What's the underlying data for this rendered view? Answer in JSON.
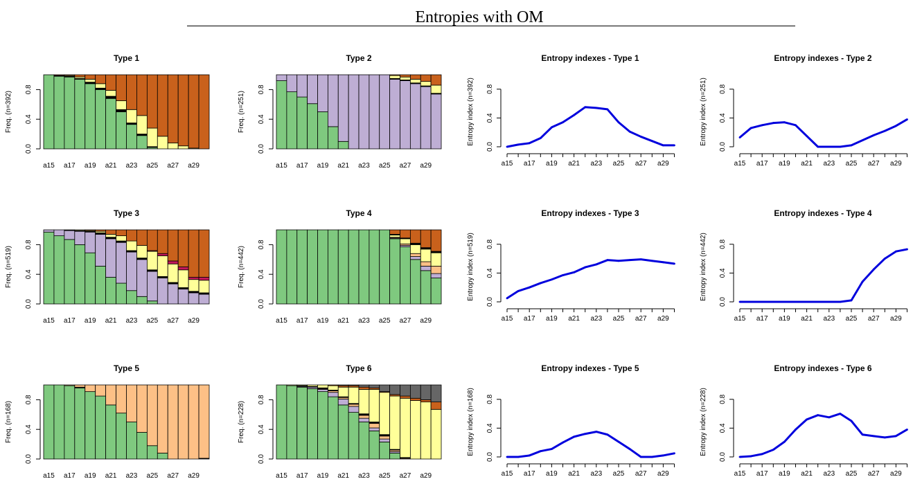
{
  "title": "Entropies with OM",
  "colors": {
    "green": "#7fc97f",
    "lavender": "#beaed4",
    "peach": "#fdc086",
    "yellow": "#ffff99",
    "orange": "#c9611c",
    "crimson": "#c2185b",
    "dark": "#666666",
    "black": "#000000",
    "line": "#0000dd"
  },
  "x_tick_labels": [
    "a15",
    "a17",
    "a19",
    "a21",
    "a23",
    "a25",
    "a27",
    "a29"
  ],
  "chart_data": [
    {
      "type": "bar",
      "title": "Type 1",
      "ylabel": "Freq. (n=392)",
      "yticks": [
        "0.0",
        "0.4",
        "0.8"
      ],
      "ylim": [
        0,
        1
      ],
      "categories": [
        "a15",
        "a16",
        "a17",
        "a18",
        "a19",
        "a20",
        "a21",
        "a22",
        "a23",
        "a24",
        "a25",
        "a26",
        "a27",
        "a28",
        "a29",
        "a30"
      ],
      "series": [
        {
          "color": "green",
          "values": [
            1.0,
            0.98,
            0.97,
            0.94,
            0.88,
            0.8,
            0.68,
            0.5,
            0.33,
            0.18,
            0.02,
            0.0,
            0.0,
            0.0,
            0.0,
            0.0
          ]
        },
        {
          "color": "black",
          "values": [
            0.0,
            0.01,
            0.01,
            0.01,
            0.02,
            0.02,
            0.03,
            0.03,
            0.02,
            0.02,
            0.01,
            0.0,
            0.0,
            0.0,
            0.0,
            0.0
          ]
        },
        {
          "color": "yellow",
          "values": [
            0.0,
            0.0,
            0.01,
            0.02,
            0.04,
            0.06,
            0.08,
            0.12,
            0.18,
            0.25,
            0.25,
            0.17,
            0.08,
            0.04,
            0.01,
            0.0
          ]
        },
        {
          "color": "orange",
          "values": [
            0.0,
            0.01,
            0.01,
            0.03,
            0.06,
            0.12,
            0.21,
            0.35,
            0.47,
            0.55,
            0.72,
            0.83,
            0.92,
            0.96,
            0.99,
            1.0
          ]
        }
      ]
    },
    {
      "type": "bar",
      "title": "Type 2",
      "ylabel": "Freq. (n=251)",
      "yticks": [
        "0.0",
        "0.4",
        "0.8"
      ],
      "ylim": [
        0,
        1
      ],
      "categories": [
        "a15",
        "a16",
        "a17",
        "a18",
        "a19",
        "a20",
        "a21",
        "a22",
        "a23",
        "a24",
        "a25",
        "a26",
        "a27",
        "a28",
        "a29",
        "a30"
      ],
      "series": [
        {
          "color": "green",
          "values": [
            0.92,
            0.77,
            0.7,
            0.61,
            0.5,
            0.3,
            0.1,
            0.0,
            0.0,
            0.0,
            0.0,
            0.0,
            0.0,
            0.0,
            0.0,
            0.0
          ]
        },
        {
          "color": "lavender",
          "values": [
            0.08,
            0.23,
            0.3,
            0.39,
            0.5,
            0.7,
            0.9,
            1.0,
            1.0,
            1.0,
            1.0,
            0.94,
            0.92,
            0.88,
            0.84,
            0.74
          ]
        },
        {
          "color": "black",
          "values": [
            0.0,
            0.0,
            0.0,
            0.0,
            0.0,
            0.0,
            0.0,
            0.0,
            0.0,
            0.0,
            0.0,
            0.01,
            0.01,
            0.01,
            0.01,
            0.01
          ]
        },
        {
          "color": "yellow",
          "values": [
            0.0,
            0.0,
            0.0,
            0.0,
            0.0,
            0.0,
            0.0,
            0.0,
            0.0,
            0.0,
            0.0,
            0.04,
            0.04,
            0.05,
            0.06,
            0.11
          ]
        },
        {
          "color": "orange",
          "values": [
            0.0,
            0.0,
            0.0,
            0.0,
            0.0,
            0.0,
            0.0,
            0.0,
            0.0,
            0.0,
            0.0,
            0.01,
            0.03,
            0.06,
            0.09,
            0.14
          ]
        }
      ]
    },
    {
      "type": "line",
      "title": "Entropy indexes - Type 1",
      "ylabel": "Entropy index (n=392)",
      "yticks": [
        "0.0",
        "0.4",
        "0.8"
      ],
      "ylim": [
        0,
        1
      ],
      "x": [
        "a15",
        "a16",
        "a17",
        "a18",
        "a19",
        "a20",
        "a21",
        "a22",
        "a23",
        "a24",
        "a25",
        "a26",
        "a27",
        "a28",
        "a29",
        "a30"
      ],
      "values": [
        0.0,
        0.03,
        0.05,
        0.12,
        0.27,
        0.34,
        0.44,
        0.55,
        0.54,
        0.52,
        0.34,
        0.21,
        0.14,
        0.08,
        0.02,
        0.02
      ]
    },
    {
      "type": "line",
      "title": "Entropy indexes - Type 2",
      "ylabel": "Entropy index (n=251)",
      "yticks": [
        "0.0",
        "0.4",
        "0.8"
      ],
      "ylim": [
        0,
        1
      ],
      "x": [
        "a15",
        "a16",
        "a17",
        "a18",
        "a19",
        "a20",
        "a21",
        "a22",
        "a23",
        "a24",
        "a25",
        "a26",
        "a27",
        "a28",
        "a29",
        "a30"
      ],
      "values": [
        0.13,
        0.26,
        0.3,
        0.33,
        0.34,
        0.3,
        0.15,
        0.0,
        0.0,
        0.0,
        0.02,
        0.09,
        0.16,
        0.22,
        0.29,
        0.38
      ]
    },
    {
      "type": "bar",
      "title": "Type 3",
      "ylabel": "Freq. (n=519)",
      "yticks": [
        "0.0",
        "0.4",
        "0.8"
      ],
      "ylim": [
        0,
        1
      ],
      "categories": [
        "a15",
        "a16",
        "a17",
        "a18",
        "a19",
        "a20",
        "a21",
        "a22",
        "a23",
        "a24",
        "a25",
        "a26",
        "a27",
        "a28",
        "a29",
        "a30"
      ],
      "series": [
        {
          "color": "green",
          "values": [
            0.97,
            0.92,
            0.87,
            0.8,
            0.69,
            0.51,
            0.36,
            0.28,
            0.18,
            0.1,
            0.04,
            0.0,
            0.0,
            0.0,
            0.0,
            0.0
          ]
        },
        {
          "color": "lavender",
          "values": [
            0.03,
            0.08,
            0.12,
            0.18,
            0.28,
            0.43,
            0.52,
            0.55,
            0.52,
            0.5,
            0.4,
            0.35,
            0.27,
            0.2,
            0.15,
            0.13
          ]
        },
        {
          "color": "black",
          "values": [
            0.0,
            0.0,
            0.01,
            0.01,
            0.01,
            0.02,
            0.02,
            0.02,
            0.02,
            0.02,
            0.02,
            0.02,
            0.02,
            0.02,
            0.02,
            0.02
          ]
        },
        {
          "color": "yellow",
          "values": [
            0.0,
            0.0,
            0.0,
            0.01,
            0.01,
            0.02,
            0.04,
            0.07,
            0.13,
            0.17,
            0.25,
            0.28,
            0.25,
            0.24,
            0.16,
            0.17
          ]
        },
        {
          "color": "crimson",
          "values": [
            0.0,
            0.0,
            0.0,
            0.0,
            0.0,
            0.0,
            0.0,
            0.0,
            0.0,
            0.0,
            0.01,
            0.03,
            0.04,
            0.04,
            0.03,
            0.04
          ]
        },
        {
          "color": "orange",
          "values": [
            0.0,
            0.0,
            0.0,
            0.0,
            0.01,
            0.02,
            0.06,
            0.08,
            0.15,
            0.21,
            0.28,
            0.32,
            0.42,
            0.5,
            0.64,
            0.64
          ]
        }
      ]
    },
    {
      "type": "bar",
      "title": "Type 4",
      "ylabel": "Freq. (n=442)",
      "yticks": [
        "0.0",
        "0.4",
        "0.8"
      ],
      "ylim": [
        0,
        1
      ],
      "categories": [
        "a15",
        "a16",
        "a17",
        "a18",
        "a19",
        "a20",
        "a21",
        "a22",
        "a23",
        "a24",
        "a25",
        "a26",
        "a27",
        "a28",
        "a29",
        "a30"
      ],
      "series": [
        {
          "color": "green",
          "values": [
            1.0,
            1.0,
            1.0,
            1.0,
            1.0,
            1.0,
            1.0,
            1.0,
            1.0,
            1.0,
            1.0,
            0.88,
            0.77,
            0.6,
            0.45,
            0.35
          ]
        },
        {
          "color": "lavender",
          "values": [
            0.0,
            0.0,
            0.0,
            0.0,
            0.0,
            0.0,
            0.0,
            0.0,
            0.0,
            0.0,
            0.0,
            0.01,
            0.02,
            0.04,
            0.06,
            0.06
          ]
        },
        {
          "color": "peach",
          "values": [
            0.0,
            0.0,
            0.0,
            0.0,
            0.0,
            0.0,
            0.0,
            0.0,
            0.0,
            0.0,
            0.0,
            0.01,
            0.02,
            0.04,
            0.06,
            0.1
          ]
        },
        {
          "color": "yellow",
          "values": [
            0.0,
            0.0,
            0.0,
            0.0,
            0.0,
            0.0,
            0.0,
            0.0,
            0.0,
            0.0,
            0.0,
            0.03,
            0.07,
            0.12,
            0.17,
            0.18
          ]
        },
        {
          "color": "black",
          "values": [
            0.0,
            0.0,
            0.0,
            0.0,
            0.0,
            0.0,
            0.0,
            0.0,
            0.0,
            0.0,
            0.0,
            0.01,
            0.01,
            0.02,
            0.02,
            0.02
          ]
        },
        {
          "color": "orange",
          "values": [
            0.0,
            0.0,
            0.0,
            0.0,
            0.0,
            0.0,
            0.0,
            0.0,
            0.0,
            0.0,
            0.0,
            0.06,
            0.11,
            0.18,
            0.24,
            0.29
          ]
        }
      ]
    },
    {
      "type": "line",
      "title": "Entropy indexes - Type 3",
      "ylabel": "Entropy index (n=519)",
      "yticks": [
        "0.0",
        "0.4",
        "0.8"
      ],
      "ylim": [
        0,
        1
      ],
      "x": [
        "a15",
        "a16",
        "a17",
        "a18",
        "a19",
        "a20",
        "a21",
        "a22",
        "a23",
        "a24",
        "a25",
        "a26",
        "a27",
        "a28",
        "a29",
        "a30"
      ],
      "values": [
        0.05,
        0.15,
        0.2,
        0.26,
        0.31,
        0.37,
        0.41,
        0.48,
        0.52,
        0.58,
        0.57,
        0.58,
        0.59,
        0.57,
        0.55,
        0.53
      ]
    },
    {
      "type": "line",
      "title": "Entropy indexes - Type 4",
      "ylabel": "Entropy index (n=442)",
      "yticks": [
        "0.0",
        "0.4",
        "0.8"
      ],
      "ylim": [
        0,
        1
      ],
      "x": [
        "a15",
        "a16",
        "a17",
        "a18",
        "a19",
        "a20",
        "a21",
        "a22",
        "a23",
        "a24",
        "a25",
        "a26",
        "a27",
        "a28",
        "a29",
        "a30"
      ],
      "values": [
        0.0,
        0.0,
        0.0,
        0.0,
        0.0,
        0.0,
        0.0,
        0.0,
        0.0,
        0.0,
        0.02,
        0.28,
        0.45,
        0.6,
        0.7,
        0.73
      ]
    },
    {
      "type": "bar",
      "title": "Type 5",
      "ylabel": "Freq. (n=168)",
      "yticks": [
        "0.0",
        "0.4",
        "0.8"
      ],
      "ylim": [
        0,
        1
      ],
      "categories": [
        "a15",
        "a16",
        "a17",
        "a18",
        "a19",
        "a20",
        "a21",
        "a22",
        "a23",
        "a24",
        "a25",
        "a26",
        "a27",
        "a28",
        "a29",
        "a30"
      ],
      "series": [
        {
          "color": "green",
          "values": [
            1.0,
            1.0,
            0.99,
            0.96,
            0.91,
            0.85,
            0.73,
            0.62,
            0.5,
            0.36,
            0.18,
            0.08,
            0.0,
            0.0,
            0.0,
            0.0
          ]
        },
        {
          "color": "black",
          "values": [
            0.0,
            0.0,
            0.0,
            0.01,
            0.0,
            0.0,
            0.0,
            0.0,
            0.0,
            0.0,
            0.0,
            0.0,
            0.0,
            0.0,
            0.0,
            0.01
          ]
        },
        {
          "color": "peach",
          "values": [
            0.0,
            0.0,
            0.01,
            0.03,
            0.09,
            0.15,
            0.27,
            0.38,
            0.5,
            0.64,
            0.82,
            0.92,
            1.0,
            1.0,
            1.0,
            0.99
          ]
        }
      ]
    },
    {
      "type": "bar",
      "title": "Type 6",
      "ylabel": "Freq. (n=228)",
      "yticks": [
        "0.0",
        "0.4",
        "0.8"
      ],
      "ylim": [
        0,
        1
      ],
      "categories": [
        "a15",
        "a16",
        "a17",
        "a18",
        "a19",
        "a20",
        "a21",
        "a22",
        "a23",
        "a24",
        "a25",
        "a26",
        "a27",
        "a28",
        "a29",
        "a30"
      ],
      "series": [
        {
          "color": "green",
          "values": [
            1.0,
            0.99,
            0.97,
            0.95,
            0.91,
            0.84,
            0.73,
            0.63,
            0.5,
            0.38,
            0.23,
            0.08,
            0.0,
            0.0,
            0.0,
            0.0
          ]
        },
        {
          "color": "lavender",
          "values": [
            0.0,
            0.0,
            0.01,
            0.02,
            0.03,
            0.06,
            0.08,
            0.08,
            0.05,
            0.04,
            0.04,
            0.02,
            0.0,
            0.0,
            0.0,
            0.0
          ]
        },
        {
          "color": "peach",
          "values": [
            0.0,
            0.0,
            0.0,
            0.0,
            0.01,
            0.02,
            0.02,
            0.03,
            0.04,
            0.06,
            0.04,
            0.02,
            0.01,
            0.0,
            0.0,
            0.0
          ]
        },
        {
          "color": "black",
          "values": [
            0.0,
            0.0,
            0.01,
            0.01,
            0.01,
            0.01,
            0.01,
            0.01,
            0.02,
            0.02,
            0.02,
            0.01,
            0.01,
            0.0,
            0.0,
            0.0
          ]
        },
        {
          "color": "yellow",
          "values": [
            0.0,
            0.01,
            0.01,
            0.02,
            0.04,
            0.06,
            0.13,
            0.22,
            0.33,
            0.44,
            0.57,
            0.72,
            0.8,
            0.79,
            0.77,
            0.67
          ]
        },
        {
          "color": "orange",
          "values": [
            0.0,
            0.0,
            0.0,
            0.0,
            0.0,
            0.01,
            0.02,
            0.02,
            0.03,
            0.02,
            0.01,
            0.02,
            0.03,
            0.03,
            0.03,
            0.1
          ]
        },
        {
          "color": "dark",
          "values": [
            0.0,
            0.0,
            0.0,
            0.0,
            0.0,
            0.0,
            0.01,
            0.01,
            0.03,
            0.04,
            0.09,
            0.13,
            0.15,
            0.18,
            0.2,
            0.23
          ]
        }
      ]
    },
    {
      "type": "line",
      "title": "Entropy indexes - Type 5",
      "ylabel": "Entropy index (n=168)",
      "yticks": [
        "0.0",
        "0.4",
        "0.8"
      ],
      "ylim": [
        0,
        1
      ],
      "x": [
        "a15",
        "a16",
        "a17",
        "a18",
        "a19",
        "a20",
        "a21",
        "a22",
        "a23",
        "a24",
        "a25",
        "a26",
        "a27",
        "a28",
        "a29",
        "a30"
      ],
      "values": [
        0.0,
        0.0,
        0.02,
        0.08,
        0.11,
        0.2,
        0.28,
        0.32,
        0.35,
        0.31,
        0.21,
        0.11,
        0.0,
        0.0,
        0.02,
        0.05
      ]
    },
    {
      "type": "line",
      "title": "Entropy indexes - Type 6",
      "ylabel": "Entropy index (n=228)",
      "yticks": [
        "0.0",
        "0.4",
        "0.8"
      ],
      "ylim": [
        0,
        1
      ],
      "x": [
        "a15",
        "a16",
        "a17",
        "a18",
        "a19",
        "a20",
        "a21",
        "a22",
        "a23",
        "a24",
        "a25",
        "a26",
        "a27",
        "a28",
        "a29",
        "a30"
      ],
      "values": [
        0.0,
        0.01,
        0.04,
        0.1,
        0.21,
        0.38,
        0.52,
        0.58,
        0.55,
        0.6,
        0.5,
        0.31,
        0.29,
        0.27,
        0.29,
        0.38
      ]
    }
  ]
}
